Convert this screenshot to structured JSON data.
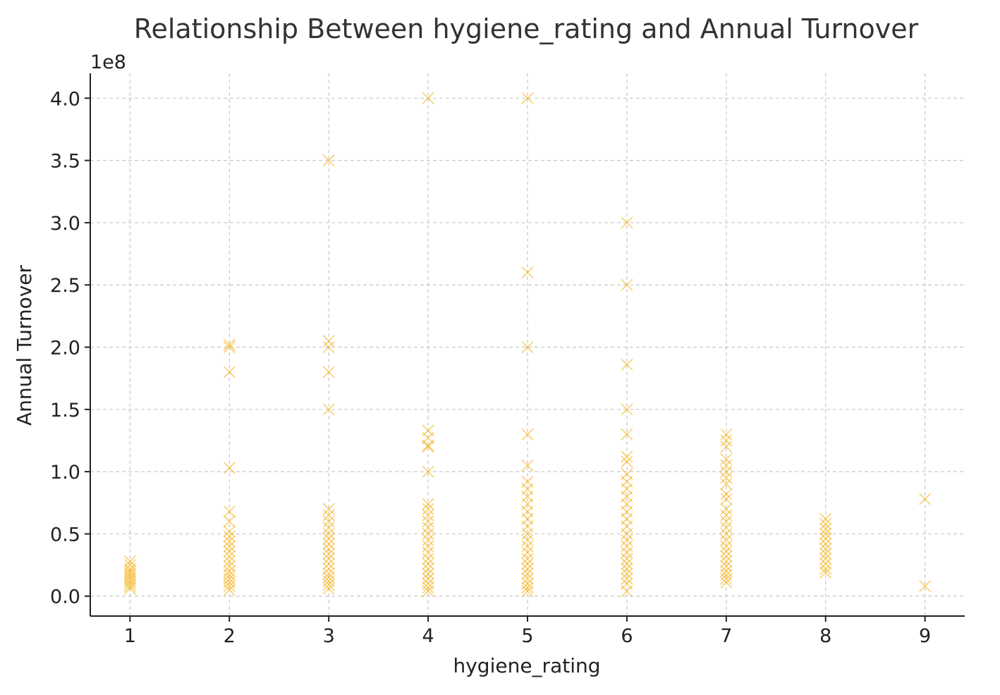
{
  "chart_data": {
    "type": "scatter",
    "title": "Relationship Between hygiene_rating and Annual Turnover",
    "xlabel": "hygiene_rating",
    "ylabel": "Annual Turnover",
    "y_offset_label": "1e8",
    "y_multiplier": 100000000,
    "xlim": [
      0.6,
      9.4
    ],
    "ylim": [
      -0.16,
      4.2
    ],
    "x_ticks": [
      1,
      2,
      3,
      4,
      5,
      6,
      7,
      8,
      9
    ],
    "x_tick_labels": [
      "1",
      "2",
      "3",
      "4",
      "5",
      "6",
      "7",
      "8",
      "9"
    ],
    "y_ticks": [
      0.0,
      0.5,
      1.0,
      1.5,
      2.0,
      2.5,
      3.0,
      3.5,
      4.0
    ],
    "y_tick_labels": [
      "0.0",
      "0.5",
      "1.0",
      "1.5",
      "2.0",
      "2.5",
      "3.0",
      "3.5",
      "4.0"
    ],
    "grid": true,
    "marker": "x",
    "color": "#F5B014",
    "legend": "none",
    "series": [
      {
        "points": [
          {
            "x": 1,
            "y": 0.28
          },
          {
            "x": 1,
            "y": 0.25
          },
          {
            "x": 1,
            "y": 0.22
          },
          {
            "x": 1,
            "y": 0.2
          },
          {
            "x": 1,
            "y": 0.18
          },
          {
            "x": 1,
            "y": 0.16
          },
          {
            "x": 1,
            "y": 0.14
          },
          {
            "x": 1,
            "y": 0.12
          },
          {
            "x": 1,
            "y": 0.1
          },
          {
            "x": 1,
            "y": 0.08
          },
          {
            "x": 1,
            "y": 0.06
          },
          {
            "x": 2,
            "y": 2.02
          },
          {
            "x": 2,
            "y": 2.0
          },
          {
            "x": 2,
            "y": 1.8
          },
          {
            "x": 2,
            "y": 1.03
          },
          {
            "x": 2,
            "y": 0.68
          },
          {
            "x": 2,
            "y": 0.6
          },
          {
            "x": 2,
            "y": 0.52
          },
          {
            "x": 2,
            "y": 0.48
          },
          {
            "x": 2,
            "y": 0.44
          },
          {
            "x": 2,
            "y": 0.4
          },
          {
            "x": 2,
            "y": 0.36
          },
          {
            "x": 2,
            "y": 0.32
          },
          {
            "x": 2,
            "y": 0.28
          },
          {
            "x": 2,
            "y": 0.24
          },
          {
            "x": 2,
            "y": 0.2
          },
          {
            "x": 2,
            "y": 0.17
          },
          {
            "x": 2,
            "y": 0.14
          },
          {
            "x": 2,
            "y": 0.11
          },
          {
            "x": 2,
            "y": 0.08
          },
          {
            "x": 2,
            "y": 0.05
          },
          {
            "x": 3,
            "y": 3.5
          },
          {
            "x": 3,
            "y": 2.05
          },
          {
            "x": 3,
            "y": 2.0
          },
          {
            "x": 3,
            "y": 1.8
          },
          {
            "x": 3,
            "y": 1.5
          },
          {
            "x": 3,
            "y": 0.7
          },
          {
            "x": 3,
            "y": 0.65
          },
          {
            "x": 3,
            "y": 0.6
          },
          {
            "x": 3,
            "y": 0.55
          },
          {
            "x": 3,
            "y": 0.5
          },
          {
            "x": 3,
            "y": 0.46
          },
          {
            "x": 3,
            "y": 0.42
          },
          {
            "x": 3,
            "y": 0.38
          },
          {
            "x": 3,
            "y": 0.34
          },
          {
            "x": 3,
            "y": 0.3
          },
          {
            "x": 3,
            "y": 0.26
          },
          {
            "x": 3,
            "y": 0.22
          },
          {
            "x": 3,
            "y": 0.18
          },
          {
            "x": 3,
            "y": 0.15
          },
          {
            "x": 3,
            "y": 0.12
          },
          {
            "x": 3,
            "y": 0.09
          },
          {
            "x": 3,
            "y": 0.06
          },
          {
            "x": 4,
            "y": 4.0
          },
          {
            "x": 4,
            "y": 1.33
          },
          {
            "x": 4,
            "y": 1.27
          },
          {
            "x": 4,
            "y": 1.21
          },
          {
            "x": 4,
            "y": 1.2
          },
          {
            "x": 4,
            "y": 1.0
          },
          {
            "x": 4,
            "y": 0.74
          },
          {
            "x": 4,
            "y": 0.7
          },
          {
            "x": 4,
            "y": 0.65
          },
          {
            "x": 4,
            "y": 0.6
          },
          {
            "x": 4,
            "y": 0.55
          },
          {
            "x": 4,
            "y": 0.5
          },
          {
            "x": 4,
            "y": 0.45
          },
          {
            "x": 4,
            "y": 0.4
          },
          {
            "x": 4,
            "y": 0.35
          },
          {
            "x": 4,
            "y": 0.3
          },
          {
            "x": 4,
            "y": 0.26
          },
          {
            "x": 4,
            "y": 0.22
          },
          {
            "x": 4,
            "y": 0.18
          },
          {
            "x": 4,
            "y": 0.14
          },
          {
            "x": 4,
            "y": 0.1
          },
          {
            "x": 4,
            "y": 0.07
          },
          {
            "x": 4,
            "y": 0.04
          },
          {
            "x": 5,
            "y": 4.0
          },
          {
            "x": 5,
            "y": 2.6
          },
          {
            "x": 5,
            "y": 2.0
          },
          {
            "x": 5,
            "y": 1.3
          },
          {
            "x": 5,
            "y": 1.05
          },
          {
            "x": 5,
            "y": 0.92
          },
          {
            "x": 5,
            "y": 0.86
          },
          {
            "x": 5,
            "y": 0.8
          },
          {
            "x": 5,
            "y": 0.74
          },
          {
            "x": 5,
            "y": 0.68
          },
          {
            "x": 5,
            "y": 0.62
          },
          {
            "x": 5,
            "y": 0.56
          },
          {
            "x": 5,
            "y": 0.5
          },
          {
            "x": 5,
            "y": 0.45
          },
          {
            "x": 5,
            "y": 0.4
          },
          {
            "x": 5,
            "y": 0.35
          },
          {
            "x": 5,
            "y": 0.3
          },
          {
            "x": 5,
            "y": 0.26
          },
          {
            "x": 5,
            "y": 0.22
          },
          {
            "x": 5,
            "y": 0.18
          },
          {
            "x": 5,
            "y": 0.14
          },
          {
            "x": 5,
            "y": 0.1
          },
          {
            "x": 5,
            "y": 0.07
          },
          {
            "x": 5,
            "y": 0.04
          },
          {
            "x": 6,
            "y": 3.0
          },
          {
            "x": 6,
            "y": 2.5
          },
          {
            "x": 6,
            "y": 1.86
          },
          {
            "x": 6,
            "y": 1.5
          },
          {
            "x": 6,
            "y": 1.3
          },
          {
            "x": 6,
            "y": 1.12
          },
          {
            "x": 6,
            "y": 1.08
          },
          {
            "x": 6,
            "y": 0.98
          },
          {
            "x": 6,
            "y": 0.92
          },
          {
            "x": 6,
            "y": 0.86
          },
          {
            "x": 6,
            "y": 0.8
          },
          {
            "x": 6,
            "y": 0.74
          },
          {
            "x": 6,
            "y": 0.68
          },
          {
            "x": 6,
            "y": 0.62
          },
          {
            "x": 6,
            "y": 0.56
          },
          {
            "x": 6,
            "y": 0.5
          },
          {
            "x": 6,
            "y": 0.45
          },
          {
            "x": 6,
            "y": 0.4
          },
          {
            "x": 6,
            "y": 0.35
          },
          {
            "x": 6,
            "y": 0.3
          },
          {
            "x": 6,
            "y": 0.26
          },
          {
            "x": 6,
            "y": 0.22
          },
          {
            "x": 6,
            "y": 0.18
          },
          {
            "x": 6,
            "y": 0.14
          },
          {
            "x": 6,
            "y": 0.1
          },
          {
            "x": 6,
            "y": 0.04
          },
          {
            "x": 7,
            "y": 1.3
          },
          {
            "x": 7,
            "y": 1.25
          },
          {
            "x": 7,
            "y": 1.2
          },
          {
            "x": 7,
            "y": 1.1
          },
          {
            "x": 7,
            "y": 1.05
          },
          {
            "x": 7,
            "y": 1.0
          },
          {
            "x": 7,
            "y": 0.95
          },
          {
            "x": 7,
            "y": 0.9
          },
          {
            "x": 7,
            "y": 0.82
          },
          {
            "x": 7,
            "y": 0.78
          },
          {
            "x": 7,
            "y": 0.7
          },
          {
            "x": 7,
            "y": 0.65
          },
          {
            "x": 7,
            "y": 0.6
          },
          {
            "x": 7,
            "y": 0.55
          },
          {
            "x": 7,
            "y": 0.5
          },
          {
            "x": 7,
            "y": 0.45
          },
          {
            "x": 7,
            "y": 0.4
          },
          {
            "x": 7,
            "y": 0.36
          },
          {
            "x": 7,
            "y": 0.32
          },
          {
            "x": 7,
            "y": 0.28
          },
          {
            "x": 7,
            "y": 0.24
          },
          {
            "x": 7,
            "y": 0.2
          },
          {
            "x": 7,
            "y": 0.17
          },
          {
            "x": 7,
            "y": 0.14
          },
          {
            "x": 7,
            "y": 0.11
          },
          {
            "x": 8,
            "y": 0.62
          },
          {
            "x": 8,
            "y": 0.58
          },
          {
            "x": 8,
            "y": 0.54
          },
          {
            "x": 8,
            "y": 0.5
          },
          {
            "x": 8,
            "y": 0.46
          },
          {
            "x": 8,
            "y": 0.42
          },
          {
            "x": 8,
            "y": 0.38
          },
          {
            "x": 8,
            "y": 0.34
          },
          {
            "x": 8,
            "y": 0.3
          },
          {
            "x": 8,
            "y": 0.26
          },
          {
            "x": 8,
            "y": 0.22
          },
          {
            "x": 8,
            "y": 0.19
          },
          {
            "x": 9,
            "y": 0.78
          },
          {
            "x": 9,
            "y": 0.08
          }
        ]
      }
    ]
  }
}
